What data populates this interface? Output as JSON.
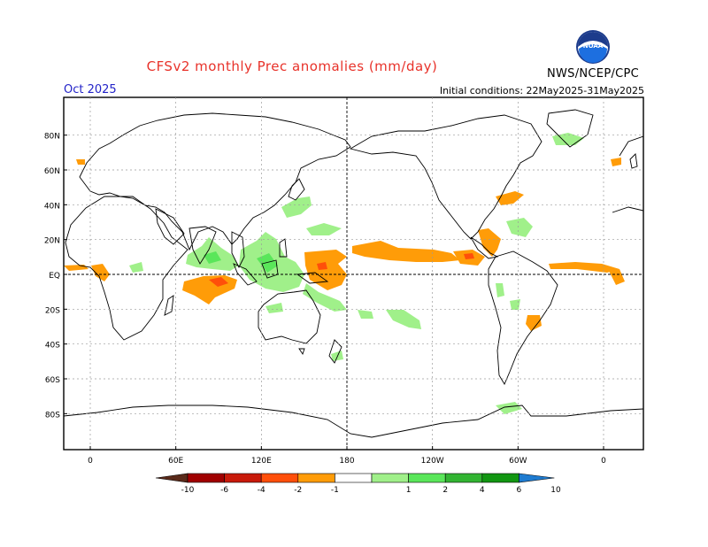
{
  "title": "CFSv2 monthly Prec anomalies (mm/day)",
  "valid_month": "Oct 2025",
  "initial_conditions": "Initial conditions: 22May2025-31May2025",
  "agency": "NWS/NCEP/CPC",
  "logo_text": "NOAA",
  "logo_icon": "noaa-logo-icon",
  "map": {
    "lat_labels": [
      "80N",
      "60N",
      "40N",
      "20N",
      "EQ",
      "20S",
      "40S",
      "60S",
      "80S"
    ],
    "lon_labels": [
      "0",
      "60E",
      "120E",
      "180",
      "120W",
      "60W",
      "0"
    ]
  },
  "legend": {
    "labels": [
      "-10",
      "-6",
      "-4",
      "-2",
      "-1",
      "1",
      "2",
      "4",
      "6",
      "10"
    ],
    "colors": [
      "#5a2a1a",
      "#a00000",
      "#c81a0a",
      "#ff4f0a",
      "#ff9c08",
      "#ffffff",
      "#a0f08a",
      "#5ae65a",
      "#32b432",
      "#129612",
      "#1e7bd0"
    ]
  }
}
